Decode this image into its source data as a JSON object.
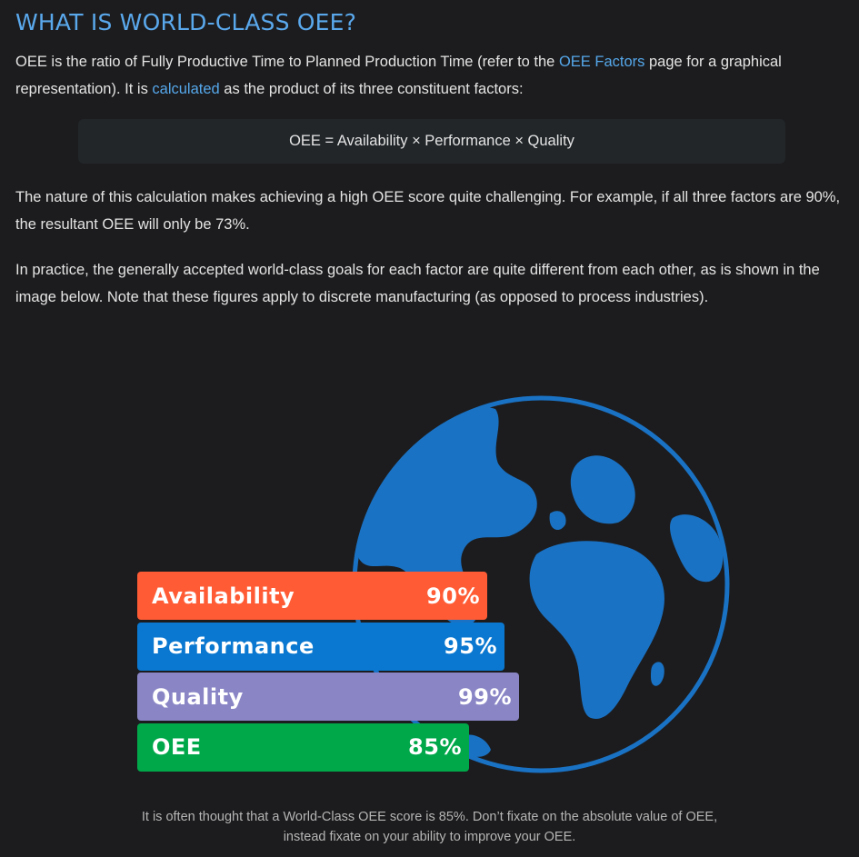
{
  "heading": "WHAT IS WORLD-CLASS OEE?",
  "intro": {
    "text_a": "OEE is the ratio of Fully Productive Time to Planned Production Time (refer to the ",
    "link_oee_factors": "OEE Factors",
    "text_b": " page for a graphical representation). It is ",
    "link_calculated": "calculated",
    "text_c": " as the product of its three constituent factors:"
  },
  "formula": "OEE = Availability × Performance × Quality",
  "paragraph_example": "The nature of this calculation makes achieving a high OEE score quite challenging. For example, if all three factors are 90%, the resultant OEE will only be 73%.",
  "paragraph_practice": "In practice, the generally accepted world-class goals for each factor are quite different from each other, as is shown in the image below. Note that these figures apply to discrete manufacturing (as opposed to process industries).",
  "figure": {
    "bars": [
      {
        "label": "Availability",
        "value_text": "90%",
        "value": 90,
        "color": "#ff5c35"
      },
      {
        "label": "Performance",
        "value_text": "95%",
        "value": 95,
        "color": "#0a78d0"
      },
      {
        "label": "Quality",
        "value_text": "99%",
        "value": 99,
        "color": "#8a86c6"
      },
      {
        "label": "OEE",
        "value_text": "85%",
        "value": 85,
        "color": "#00a84a"
      }
    ],
    "globe_color": "#1a72c4"
  },
  "caption_line1": "It is often thought that a World-Class OEE score is 85%. Don’t fixate on the absolute value of OEE,",
  "caption_line2": "instead fixate on your ability to improve your OEE."
}
